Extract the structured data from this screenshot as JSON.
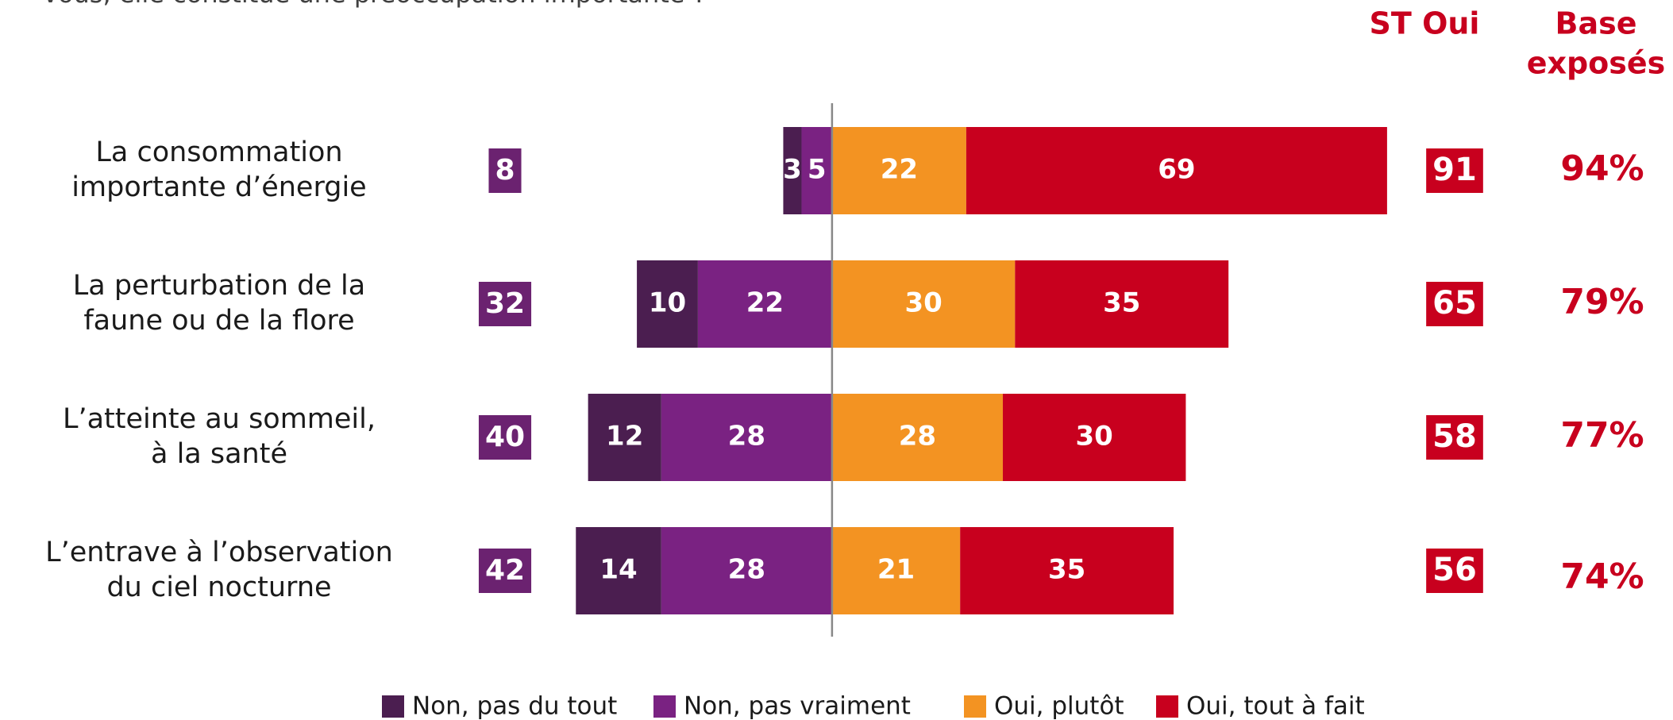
{
  "chart_data": {
    "type": "diverging_bar",
    "subtitle": "vous, elle constitue une préoccupation importante ?",
    "categories": [
      [
        "La consommation",
        "importante d’énergie"
      ],
      [
        "La perturbation de la",
        "faune ou de la flore"
      ],
      [
        "L’atteinte au sommeil,",
        "à la santé"
      ],
      [
        "L’entrave à l’observation",
        "du ciel nocturne"
      ]
    ],
    "series": [
      {
        "name": "Non, pas du tout",
        "color": "#4b1e50",
        "side": "negative",
        "values": [
          3,
          10,
          12,
          14
        ]
      },
      {
        "name": "Non, pas vraiment",
        "color": "#7a2282",
        "side": "negative",
        "values": [
          5,
          22,
          28,
          28
        ]
      },
      {
        "name": "Oui, plutôt",
        "color": "#f39322",
        "side": "positive",
        "values": [
          22,
          30,
          28,
          21
        ]
      },
      {
        "name": "Oui, tout à fait",
        "color": "#c8001e",
        "side": "positive",
        "values": [
          69,
          35,
          30,
          35
        ]
      }
    ],
    "st_non": {
      "color": "#6b2270",
      "values": [
        8,
        32,
        40,
        42
      ]
    },
    "st_oui": {
      "header": "ST Oui",
      "color": "#c8001e",
      "values": [
        91,
        65,
        58,
        56
      ]
    },
    "base": {
      "header": [
        "Base",
        "exposés"
      ],
      "color": "#c8001e",
      "values": [
        94,
        79,
        77,
        74
      ],
      "value_labels": [
        "94%",
        "79%",
        "77%",
        "74%"
      ]
    },
    "xlim": [
      -60,
      75
    ]
  }
}
